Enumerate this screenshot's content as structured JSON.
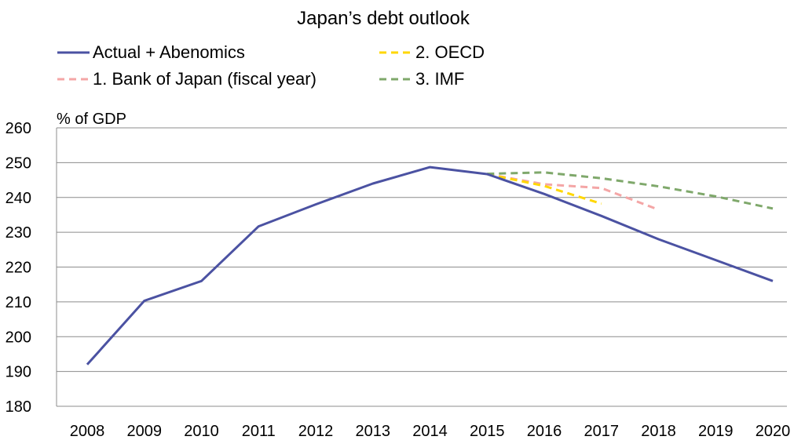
{
  "chart_data": {
    "type": "line",
    "title": "Japan’s debt outlook",
    "ylabel": "% of GDP",
    "xlabel": "",
    "ylim": [
      180,
      260
    ],
    "yticks": [
      180,
      190,
      200,
      210,
      220,
      230,
      240,
      250,
      260
    ],
    "x": [
      2008,
      2009,
      2010,
      2011,
      2012,
      2013,
      2014,
      2015,
      2016,
      2017,
      2018,
      2019,
      2020
    ],
    "grid": true,
    "legend_position": "top",
    "series": [
      {
        "name": "Actual + Abenomics",
        "color": "#4b52a2",
        "dash": "solid",
        "points": [
          [
            2008,
            192
          ],
          [
            2009,
            210.3
          ],
          [
            2010,
            216
          ],
          [
            2011,
            231.7
          ],
          [
            2012,
            238
          ],
          [
            2013,
            244
          ],
          [
            2014,
            248.7
          ],
          [
            2015,
            246.7
          ],
          [
            2016,
            241
          ],
          [
            2017,
            234.7
          ],
          [
            2018,
            228
          ],
          [
            2019,
            222
          ],
          [
            2020,
            216
          ]
        ]
      },
      {
        "name": "2. OECD",
        "color": "#ffd700",
        "dash": "dashed",
        "points": [
          [
            2015,
            246.7
          ],
          [
            2016,
            243.3
          ],
          [
            2017,
            238.2
          ]
        ]
      },
      {
        "name": "1. Bank of Japan (fiscal year)",
        "color": "#f4a6a6",
        "dash": "dashed",
        "points": [
          [
            2015,
            246.7
          ],
          [
            2016,
            243.8
          ],
          [
            2017,
            242.7
          ],
          [
            2018,
            236.5
          ]
        ]
      },
      {
        "name": "3. IMF",
        "color": "#7fa86b",
        "dash": "dashed",
        "points": [
          [
            2015,
            246.8
          ],
          [
            2016,
            247.2
          ],
          [
            2017,
            245.5
          ],
          [
            2018,
            243.2
          ],
          [
            2019,
            240.3
          ],
          [
            2020,
            236.8
          ]
        ]
      }
    ]
  }
}
